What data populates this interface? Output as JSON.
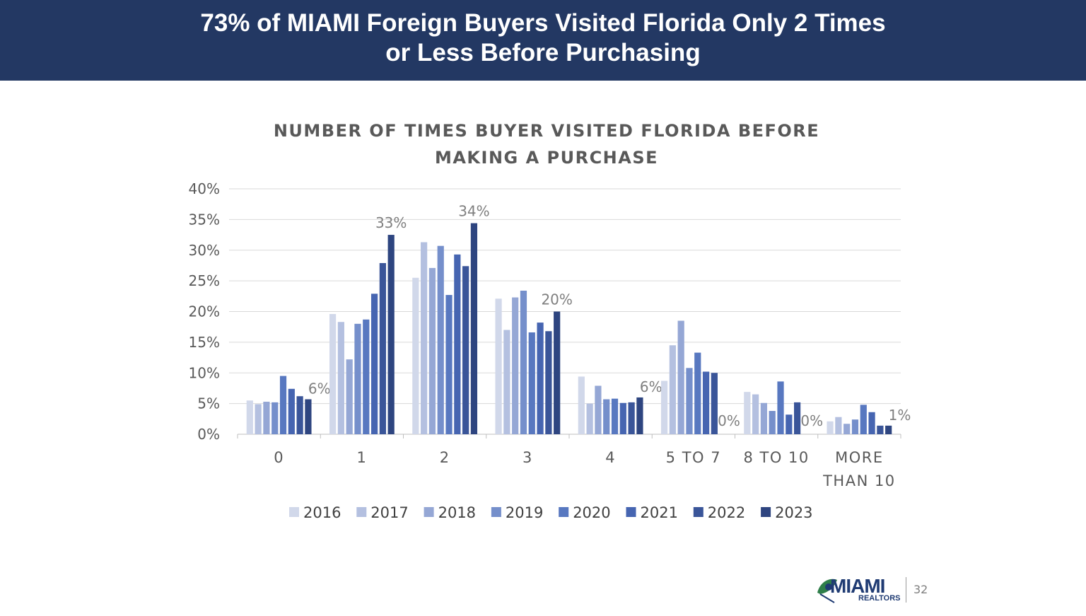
{
  "slide": {
    "title_line1": "73% of MIAMI Foreign Buyers Visited Florida Only 2 Times",
    "title_line2": "or Less Before Purchasing",
    "page_number": "32",
    "logo_text": "MIAMI",
    "logo_subtext": "REALTORS"
  },
  "chart_data": {
    "type": "bar",
    "title_line1": "NUMBER OF TIMES BUYER VISITED FLORIDA BEFORE",
    "title_line2": "MAKING A PURCHASE",
    "xlabel": "",
    "ylabel": "",
    "ylim": [
      0,
      40
    ],
    "yticks": [
      "0%",
      "5%",
      "10%",
      "15%",
      "20%",
      "25%",
      "30%",
      "35%",
      "40%"
    ],
    "gridlines": true,
    "legend_position": "bottom",
    "categories": [
      [
        "0"
      ],
      [
        "1"
      ],
      [
        "2"
      ],
      [
        "3"
      ],
      [
        "4"
      ],
      [
        "5 TO 7"
      ],
      [
        "8 TO 10"
      ],
      [
        "MORE",
        "THAN 10"
      ]
    ],
    "series": [
      {
        "name": "2016",
        "color": "#d1d8ea",
        "values": [
          5.5,
          19.6,
          25.5,
          22.1,
          9.4,
          8.7,
          6.9,
          2.1
        ]
      },
      {
        "name": "2017",
        "color": "#b4c0e0",
        "values": [
          4.9,
          18.3,
          31.3,
          17.0,
          5.0,
          14.5,
          6.5,
          2.8
        ]
      },
      {
        "name": "2018",
        "color": "#95a7d5",
        "values": [
          5.3,
          12.2,
          27.1,
          22.3,
          7.9,
          18.5,
          5.1,
          1.7
        ]
      },
      {
        "name": "2019",
        "color": "#758fcb",
        "values": [
          5.2,
          18.0,
          30.7,
          23.4,
          5.7,
          10.8,
          3.8,
          2.4
        ]
      },
      {
        "name": "2020",
        "color": "#5878c0",
        "values": [
          9.5,
          18.7,
          22.7,
          16.6,
          5.8,
          13.3,
          8.6,
          4.8
        ]
      },
      {
        "name": "2021",
        "color": "#4665b1",
        "values": [
          7.4,
          22.9,
          29.3,
          18.2,
          5.1,
          10.2,
          3.2,
          3.6
        ]
      },
      {
        "name": "2022",
        "color": "#3a5599",
        "values": [
          6.2,
          27.9,
          27.4,
          16.8,
          5.2,
          10.0,
          5.2,
          1.4
        ]
      },
      {
        "name": "2023",
        "color": "#2e4580",
        "values": [
          5.7,
          32.5,
          34.4,
          20.0,
          6.0,
          0.0,
          0.0,
          1.4
        ]
      }
    ],
    "data_labels": {
      "series": "2023",
      "labels": [
        "6%",
        "33%",
        "34%",
        "20%",
        "6%",
        "0%",
        "0%",
        "1%"
      ]
    }
  }
}
